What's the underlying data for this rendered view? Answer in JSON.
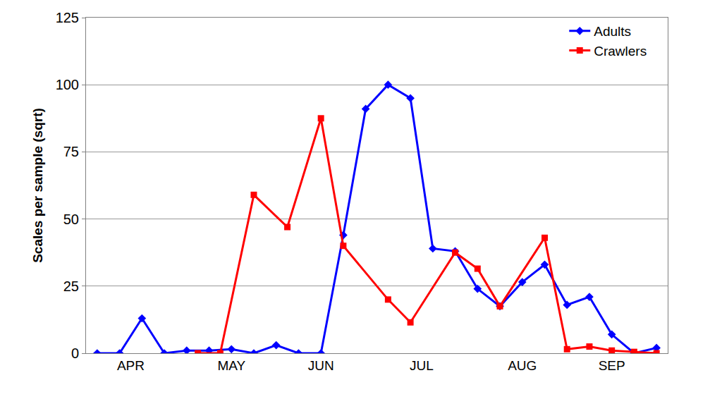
{
  "chart_data": {
    "type": "line",
    "y_label": "Scales per sample (sqrt)",
    "categories": [
      null,
      null,
      null,
      "APR",
      null,
      null,
      null,
      null,
      null,
      null,
      null,
      null,
      "MAY",
      null,
      null,
      null,
      null,
      null,
      null,
      null,
      "JUN",
      null,
      null,
      null,
      null,
      null,
      null,
      null,
      null,
      "JUL",
      null,
      null,
      null,
      null,
      null,
      null,
      null,
      null,
      "AUG",
      null,
      null,
      null,
      null,
      null,
      null,
      null,
      "SEP",
      null,
      null,
      null,
      null
    ],
    "series": [
      {
        "name": "Adults",
        "color": "#0000ff",
        "marker": "diamond",
        "values": [
          0,
          null,
          0,
          null,
          13,
          null,
          0,
          null,
          1,
          null,
          1,
          null,
          1.5,
          null,
          0,
          null,
          3,
          null,
          0,
          null,
          0,
          null,
          44,
          null,
          91,
          null,
          100,
          null,
          95,
          null,
          39,
          null,
          38,
          null,
          24,
          null,
          17.5,
          null,
          26.5,
          null,
          33,
          null,
          18,
          null,
          21,
          null,
          7,
          null,
          0,
          null,
          2
        ]
      },
      {
        "name": "Crawlers",
        "color": "#ff0000",
        "marker": "square",
        "values": [
          null,
          null,
          null,
          null,
          null,
          null,
          null,
          null,
          null,
          0,
          null,
          0,
          null,
          null,
          59,
          null,
          null,
          47,
          null,
          null,
          87.5,
          null,
          40,
          null,
          null,
          null,
          20,
          null,
          11.5,
          null,
          null,
          null,
          37.5,
          null,
          31.5,
          null,
          17.5,
          null,
          null,
          null,
          43,
          null,
          1.5,
          null,
          2.5,
          null,
          1,
          null,
          0.5,
          null,
          0
        ]
      }
    ],
    "ylim": [
      0,
      125
    ],
    "yticks": [
      0,
      25,
      50,
      75,
      100,
      125
    ],
    "grid": true,
    "legend": "top-right"
  }
}
